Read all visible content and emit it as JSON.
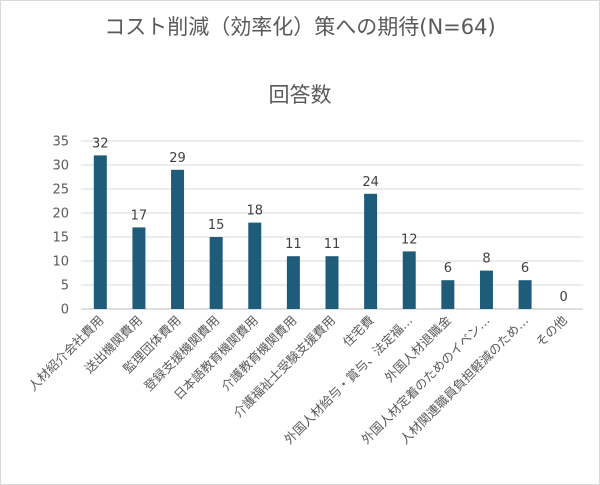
{
  "chart_data": {
    "type": "bar",
    "title": "コスト削減（効率化）策への期待(N=64)",
    "subtitle": "回答数",
    "categories": [
      "人材紹介会社費用",
      "送出機関費用",
      "監理団体費用",
      "登録支援機関費用",
      "日本語教育機関費用",
      "介護教育機関費用",
      "介護福祉士受験支援費用",
      "住宅費",
      "外国人材給与・賞与、法定福…",
      "外国人材退職金",
      "外国人材定着のためのイベン…",
      "人材関連職員負担軽減のため…",
      "その他"
    ],
    "values": [
      32,
      17,
      29,
      15,
      18,
      11,
      11,
      24,
      12,
      6,
      8,
      6,
      0
    ],
    "ylim": [
      0,
      35
    ],
    "yticks": [
      0,
      5,
      10,
      15,
      20,
      25,
      30,
      35
    ],
    "grid": true,
    "legend": "none",
    "bar_color": "#1f5c7a"
  }
}
